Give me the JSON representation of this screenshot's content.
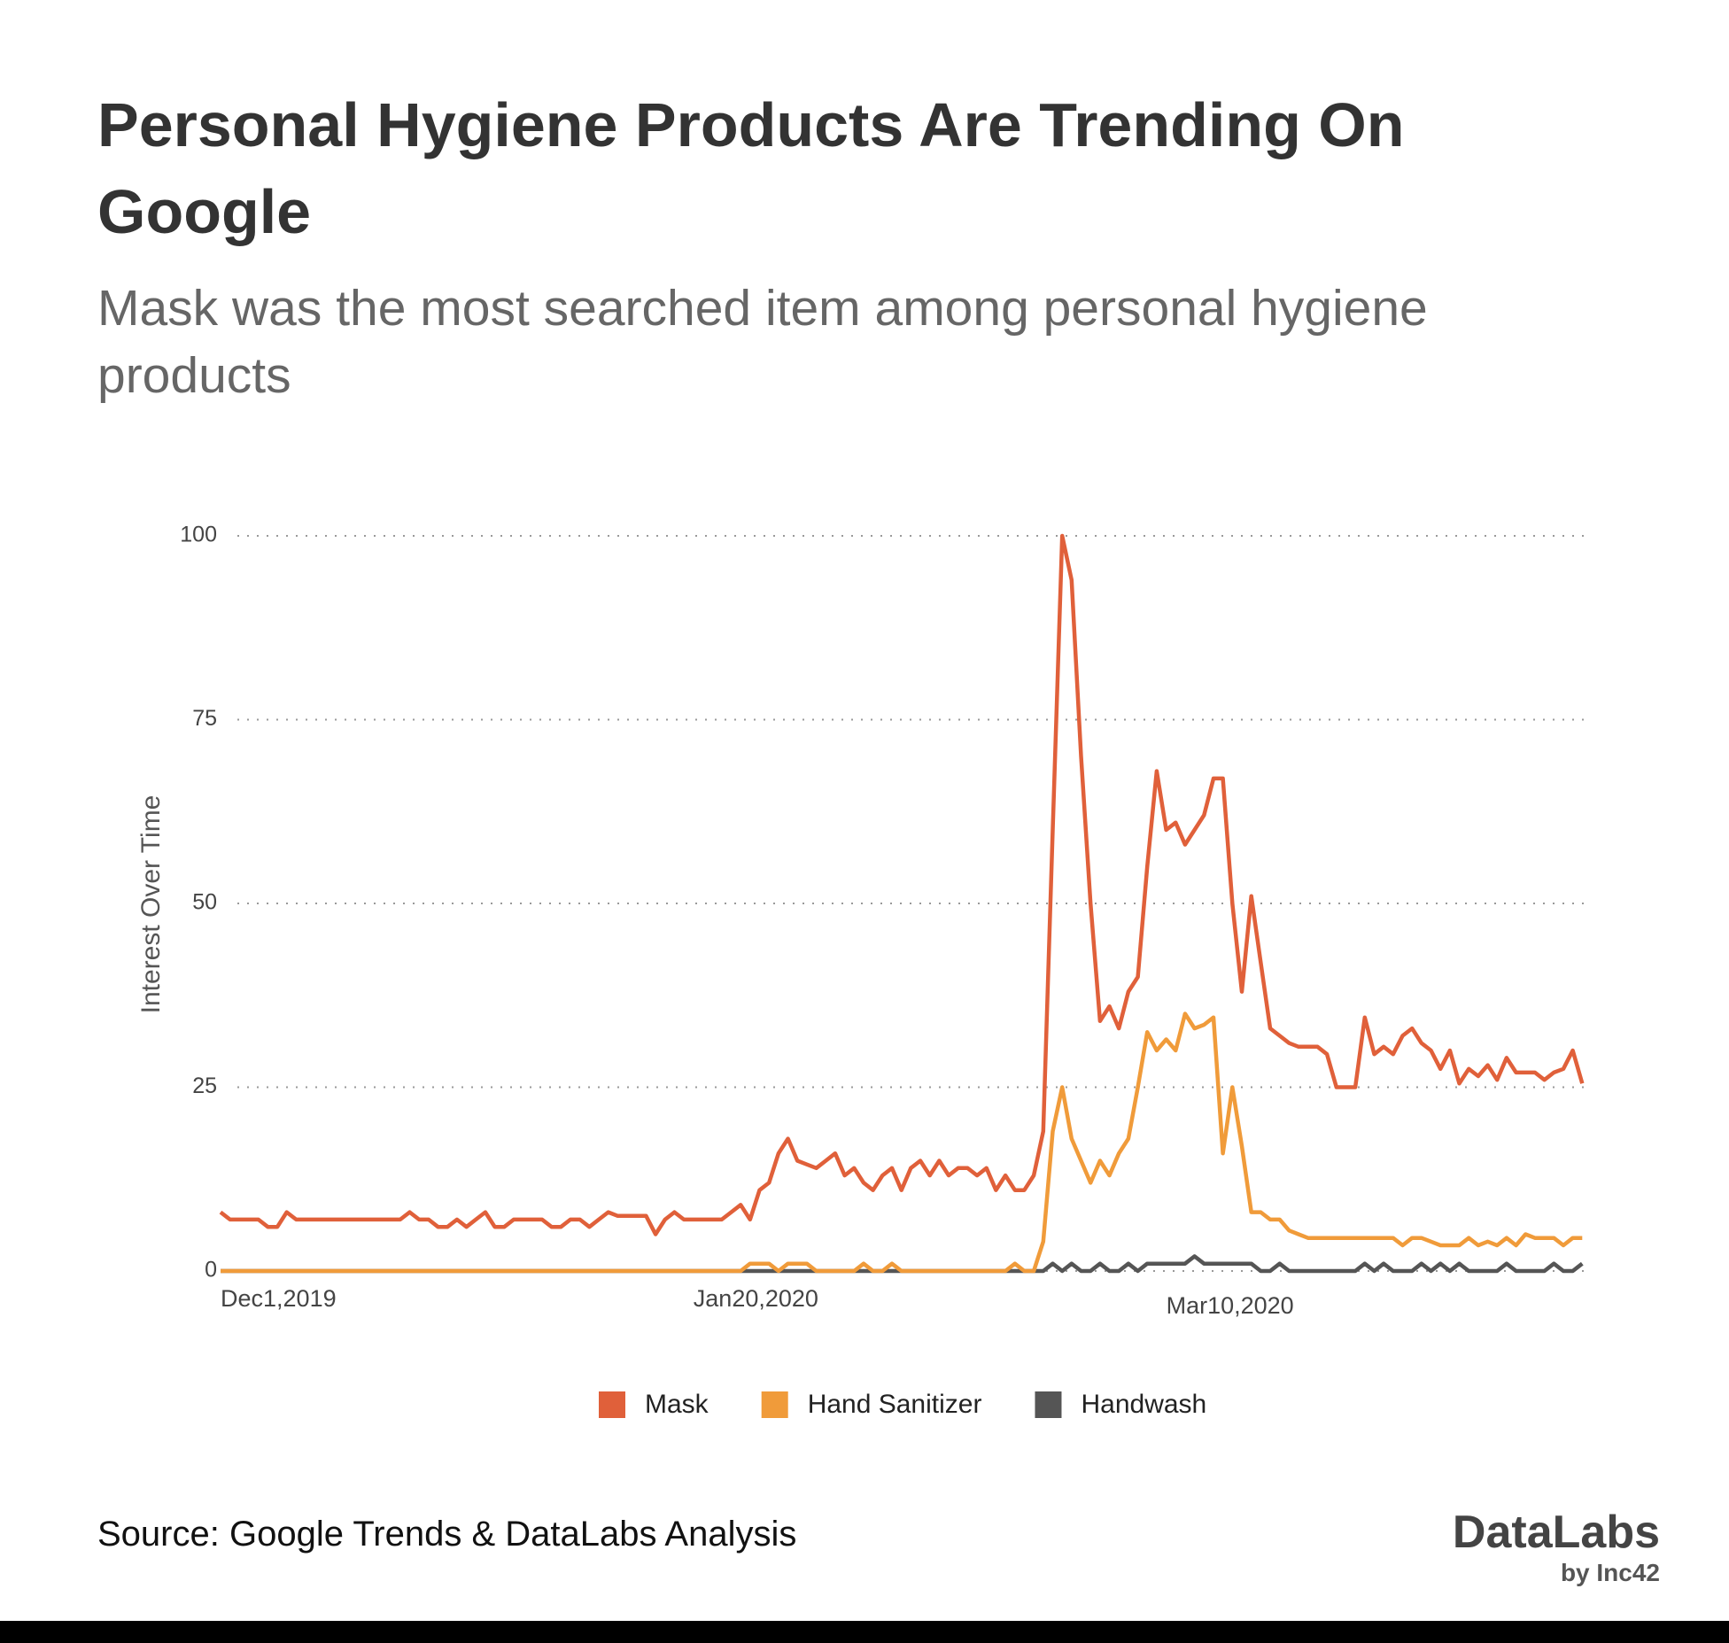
{
  "chart_data": {
    "type": "line",
    "title": "Personal Hygiene Products Are Trending On Google",
    "subtitle": "Mask was the most searched item among personal hygiene products",
    "ylabel": "Interest Over Time",
    "x": [
      "2019-12-01",
      "2019-12-02",
      "2019-12-03",
      "2019-12-04",
      "2019-12-05",
      "2019-12-06",
      "2019-12-07",
      "2019-12-08",
      "2019-12-09",
      "2019-12-10",
      "2019-12-11",
      "2019-12-12",
      "2019-12-13",
      "2019-12-14",
      "2019-12-15",
      "2019-12-16",
      "2019-12-17",
      "2019-12-18",
      "2019-12-19",
      "2019-12-20",
      "2019-12-21",
      "2019-12-22",
      "2019-12-23",
      "2019-12-24",
      "2019-12-25",
      "2019-12-26",
      "2019-12-27",
      "2019-12-28",
      "2019-12-29",
      "2019-12-30",
      "2019-12-31",
      "2020-01-01",
      "2020-01-02",
      "2020-01-03",
      "2020-01-04",
      "2020-01-05",
      "2020-01-06",
      "2020-01-07",
      "2020-01-08",
      "2020-01-09",
      "2020-01-10",
      "2020-01-11",
      "2020-01-12",
      "2020-01-13",
      "2020-01-14",
      "2020-01-15",
      "2020-01-16",
      "2020-01-17",
      "2020-01-18",
      "2020-01-19",
      "2020-01-20",
      "2020-01-21",
      "2020-01-22",
      "2020-01-23",
      "2020-01-24",
      "2020-01-25",
      "2020-01-26",
      "2020-01-27",
      "2020-01-28",
      "2020-01-29",
      "2020-01-30",
      "2020-01-31",
      "2020-02-01",
      "2020-02-02",
      "2020-02-03",
      "2020-02-04",
      "2020-02-05",
      "2020-02-06",
      "2020-02-07",
      "2020-02-08",
      "2020-02-09",
      "2020-02-10",
      "2020-02-11",
      "2020-02-12",
      "2020-02-13",
      "2020-02-14",
      "2020-02-15",
      "2020-02-16",
      "2020-02-17",
      "2020-02-18",
      "2020-02-19",
      "2020-02-20",
      "2020-02-21",
      "2020-02-22",
      "2020-02-23",
      "2020-02-24",
      "2020-02-25",
      "2020-02-26",
      "2020-02-27",
      "2020-02-28",
      "2020-02-29",
      "2020-03-01",
      "2020-03-02",
      "2020-03-03",
      "2020-03-04",
      "2020-03-05",
      "2020-03-06",
      "2020-03-07",
      "2020-03-08",
      "2020-03-09",
      "2020-03-10",
      "2020-03-11",
      "2020-03-12",
      "2020-03-13",
      "2020-03-14",
      "2020-03-15",
      "2020-03-16",
      "2020-03-17",
      "2020-03-18",
      "2020-03-19",
      "2020-03-20",
      "2020-03-21",
      "2020-03-22",
      "2020-03-23",
      "2020-03-24",
      "2020-03-25",
      "2020-03-26",
      "2020-03-27",
      "2020-03-28",
      "2020-03-29",
      "2020-03-30",
      "2020-03-31",
      "2020-04-01",
      "2020-04-02",
      "2020-04-03",
      "2020-04-04",
      "2020-04-05",
      "2020-04-06",
      "2020-04-07",
      "2020-04-08",
      "2020-04-09",
      "2020-04-10",
      "2020-04-11",
      "2020-04-12",
      "2020-04-13",
      "2020-04-14",
      "2020-04-15",
      "2020-04-16",
      "2020-04-17",
      "2020-04-18",
      "2020-04-19",
      "2020-04-20",
      "2020-04-21",
      "2020-04-22",
      "2020-04-23"
    ],
    "xlim": [
      "2019-12-01",
      "2020-04-24"
    ],
    "xticks": [
      {
        "value": "2019-12-01",
        "label": "Dec1,2019"
      },
      {
        "value": "2020-01-20",
        "label": "Jan20,2020"
      },
      {
        "value": "2020-03-10",
        "label": "Mar10,2020"
      }
    ],
    "ylim": [
      0,
      100
    ],
    "yticks": [
      0,
      25,
      50,
      75,
      100
    ],
    "grid": true,
    "series": [
      {
        "name": "Mask",
        "color": "#e0603a",
        "values": [
          8,
          7,
          7,
          7,
          7,
          6,
          6,
          8,
          7,
          7,
          7,
          7,
          7,
          7,
          7,
          7,
          7,
          7,
          7,
          7,
          8,
          7,
          7,
          6,
          6,
          7,
          6,
          7,
          8,
          6,
          6,
          7,
          7,
          7,
          7,
          6,
          6,
          7,
          7,
          6,
          7,
          8,
          7.5,
          7.5,
          7.5,
          7.5,
          5,
          7,
          8,
          7,
          7,
          7,
          7,
          7,
          8,
          9,
          7,
          11,
          12,
          16,
          18,
          15,
          14.5,
          14,
          15,
          16,
          13,
          14,
          12,
          11,
          13,
          14,
          11,
          14,
          15,
          13,
          15,
          13,
          14,
          14,
          13,
          14,
          11,
          13,
          11,
          11,
          13,
          19,
          60,
          100,
          94,
          70,
          50,
          34,
          36,
          33,
          38,
          40,
          55,
          68,
          60,
          61,
          58,
          60,
          62,
          67,
          67,
          50,
          38,
          51,
          42,
          33,
          32,
          31,
          30.5,
          30.5,
          30.5,
          29.5,
          25,
          25,
          25,
          34.5,
          29.5,
          30.5,
          29.5,
          32,
          33,
          31,
          30,
          27.5,
          30,
          25.5,
          27.5,
          26.5,
          28,
          26,
          29,
          27,
          27,
          27,
          26,
          27,
          27.5,
          30,
          25.5
        ]
      },
      {
        "name": "Hand Sanitizer",
        "color": "#f09b3a",
        "values": [
          0,
          0,
          0,
          0,
          0,
          0,
          0,
          0,
          0,
          0,
          0,
          0,
          0,
          0,
          0,
          0,
          0,
          0,
          0,
          0,
          0,
          0,
          0,
          0,
          0,
          0,
          0,
          0,
          0,
          0,
          0,
          0,
          0,
          0,
          0,
          0,
          0,
          0,
          0,
          0,
          0,
          0,
          0,
          0,
          0,
          0,
          0,
          0,
          0,
          0,
          0,
          0,
          0,
          0,
          0,
          0,
          1,
          1,
          1,
          0,
          1,
          1,
          1,
          0,
          0,
          0,
          0,
          0,
          1,
          0,
          0,
          1,
          0,
          0,
          0,
          0,
          0,
          0,
          0,
          0,
          0,
          0,
          0,
          0,
          1,
          0,
          0,
          4,
          19,
          25,
          18,
          15,
          12,
          15,
          13,
          16,
          18,
          25,
          32.5,
          30,
          31.5,
          30,
          35,
          33,
          33.5,
          34.5,
          16,
          25,
          17,
          8,
          8,
          7,
          7,
          5.5,
          5,
          4.5,
          4.5,
          4.5,
          4.5,
          4.5,
          4.5,
          4.5,
          4.5,
          4.5,
          4.5,
          3.5,
          4.5,
          4.5,
          4,
          3.5,
          3.5,
          3.5,
          4.5,
          3.5,
          4,
          3.5,
          4.5,
          3.5,
          5,
          4.5,
          4.5,
          4.5,
          3.5,
          4.5,
          4.5
        ]
      },
      {
        "name": "Handwash",
        "color": "#555555",
        "values": [
          0,
          0,
          0,
          0,
          0,
          0,
          0,
          0,
          0,
          0,
          0,
          0,
          0,
          0,
          0,
          0,
          0,
          0,
          0,
          0,
          0,
          0,
          0,
          0,
          0,
          0,
          0,
          0,
          0,
          0,
          0,
          0,
          0,
          0,
          0,
          0,
          0,
          0,
          0,
          0,
          0,
          0,
          0,
          0,
          0,
          0,
          0,
          0,
          0,
          0,
          0,
          0,
          0,
          0,
          0,
          0,
          0,
          0,
          0,
          0,
          0,
          0,
          0,
          0,
          0,
          0,
          0,
          0,
          0,
          0,
          0,
          0,
          0,
          0,
          0,
          0,
          0,
          0,
          0,
          0,
          0,
          0,
          0,
          0,
          0,
          0,
          0,
          0,
          1,
          0,
          1,
          0,
          0,
          1,
          0,
          0,
          1,
          0,
          1,
          1,
          1,
          1,
          1,
          2,
          1,
          1,
          1,
          1,
          1,
          1,
          0,
          0,
          1,
          0,
          0,
          0,
          0,
          0,
          0,
          0,
          0,
          1,
          0,
          1,
          0,
          0,
          0,
          1,
          0,
          1,
          0,
          1,
          0,
          0,
          0,
          0,
          1,
          0,
          0,
          0,
          0,
          1,
          0,
          0,
          1
        ]
      }
    ]
  },
  "footer": {
    "source": "Source: Google Trends & DataLabs Analysis",
    "brand": "DataLabs",
    "brand_sub": "by Inc42"
  }
}
